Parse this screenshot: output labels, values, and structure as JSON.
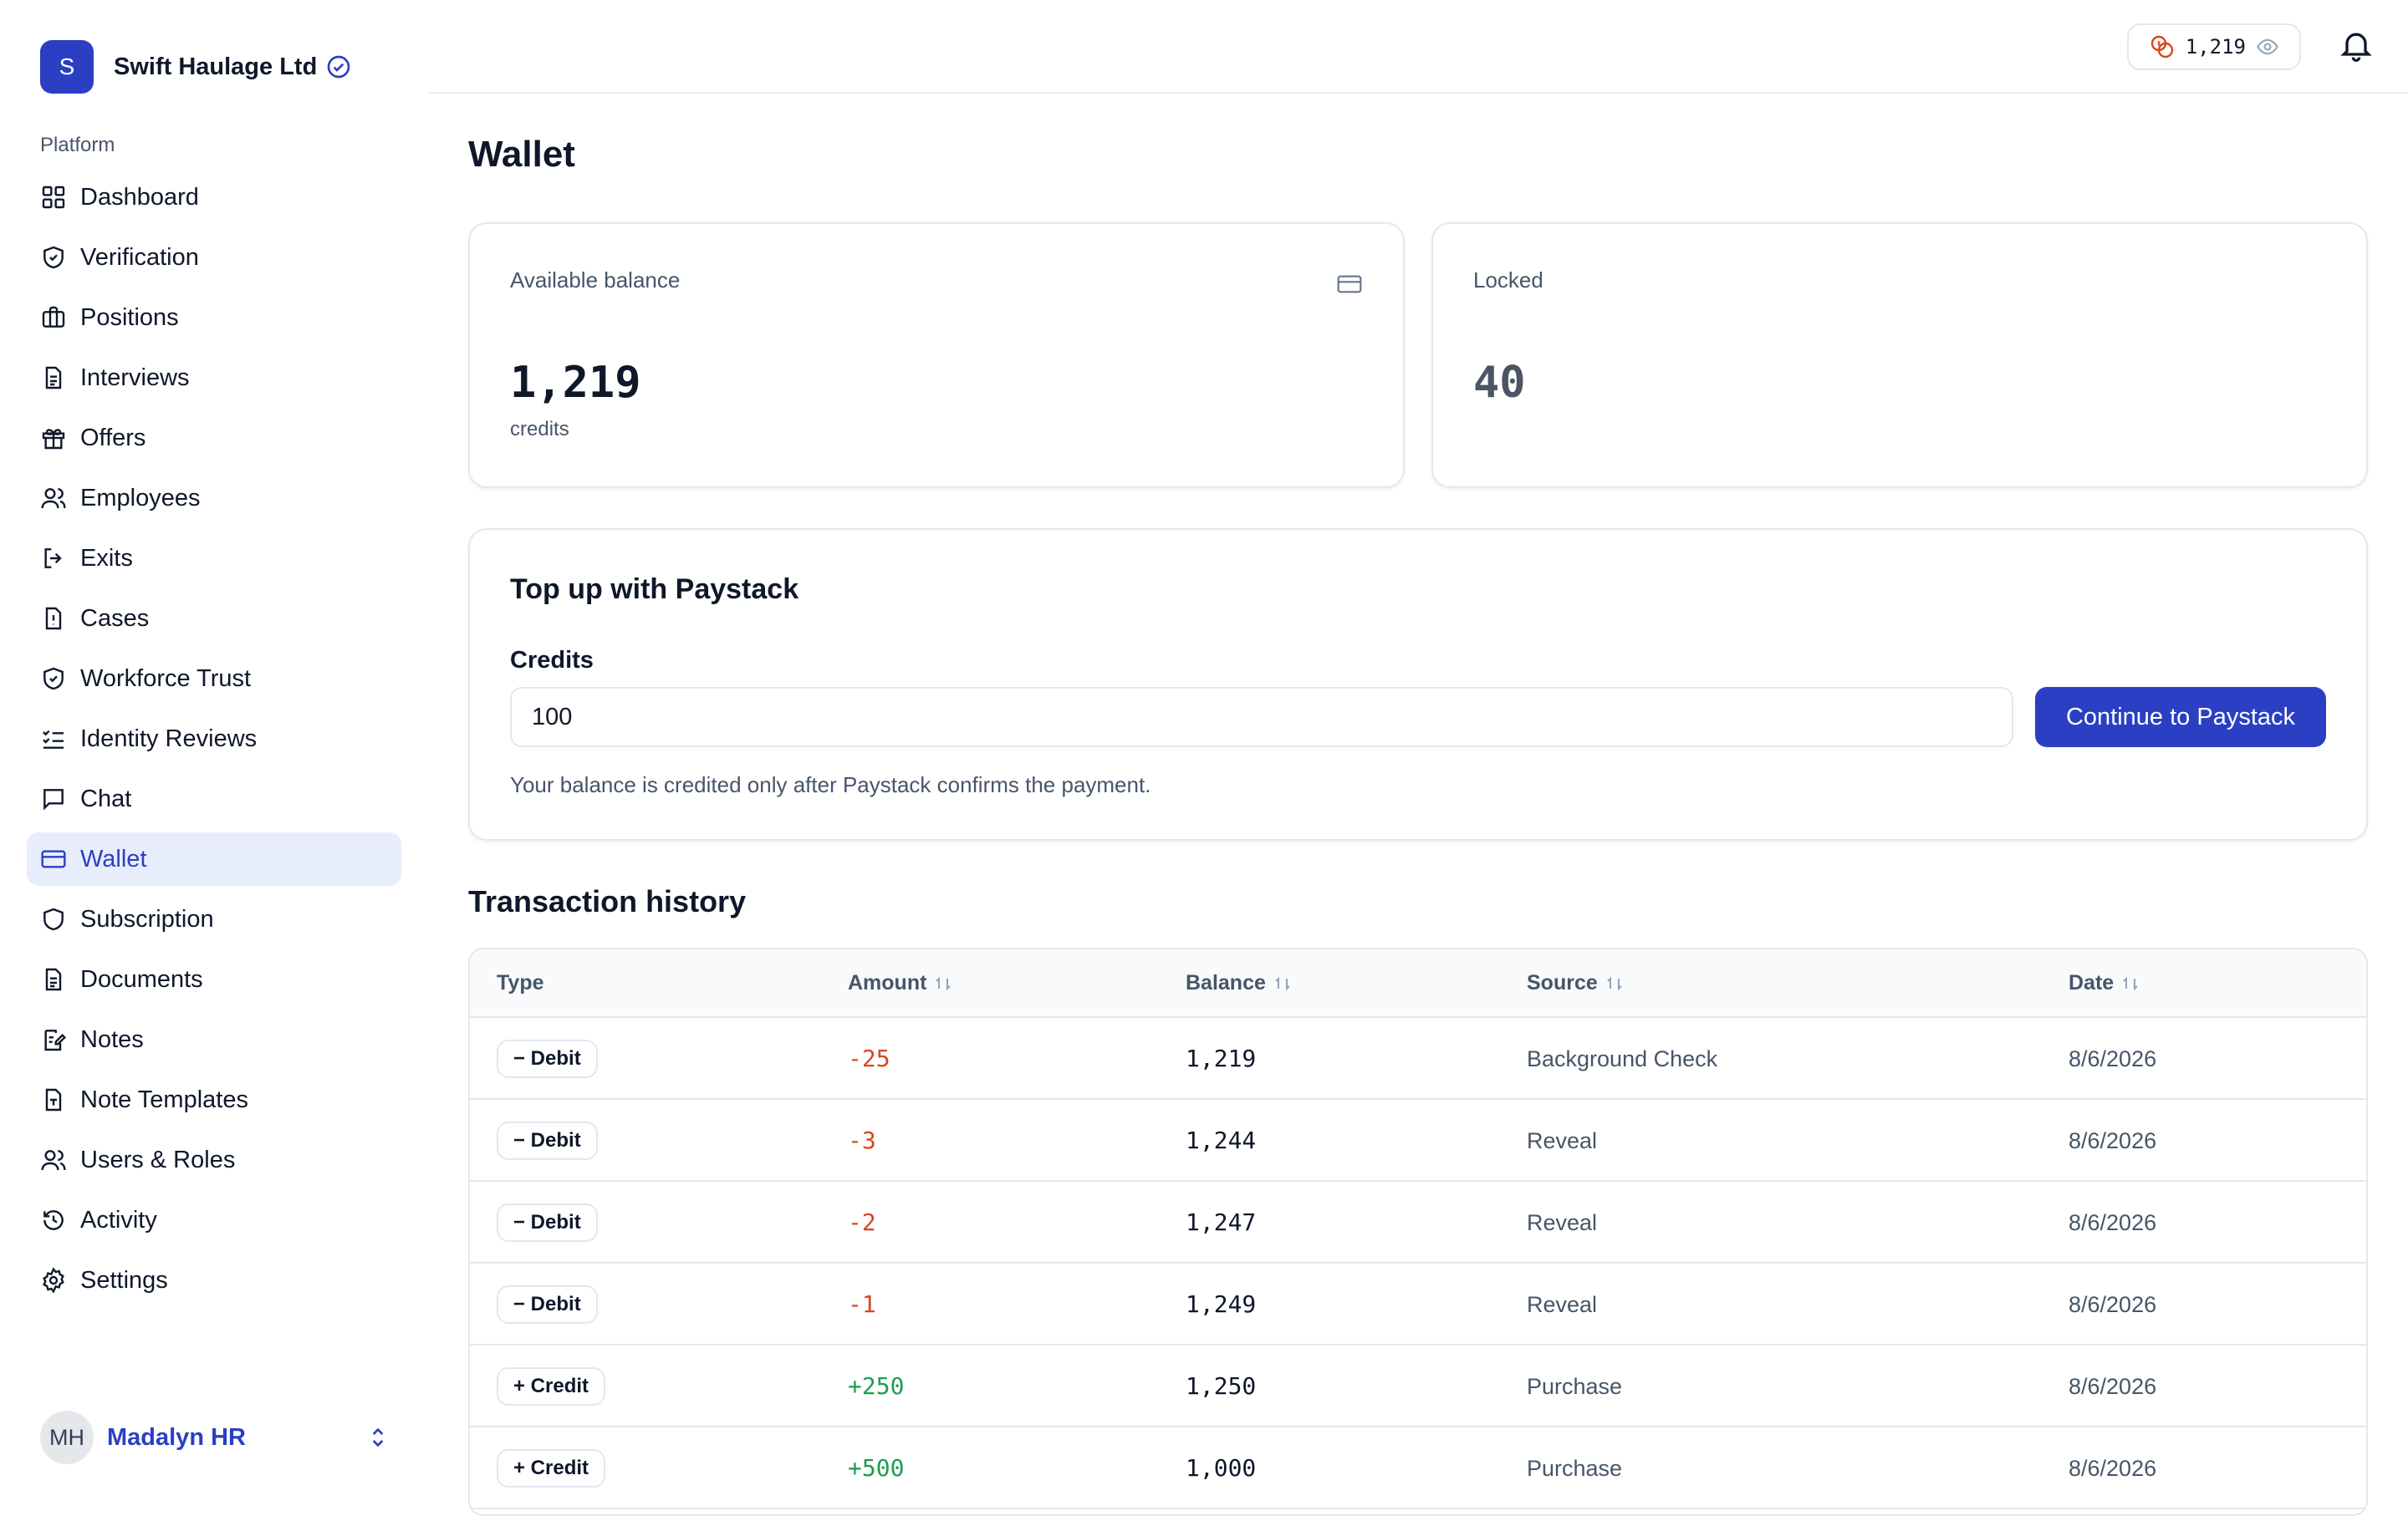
{
  "org": {
    "initial": "S",
    "name": "Swift Haulage Ltd"
  },
  "sidebar": {
    "section_label": "Platform",
    "items": [
      {
        "label": "Dashboard",
        "icon": "grid-icon"
      },
      {
        "label": "Verification",
        "icon": "shield-check-icon"
      },
      {
        "label": "Positions",
        "icon": "briefcase-icon"
      },
      {
        "label": "Interviews",
        "icon": "document-icon"
      },
      {
        "label": "Offers",
        "icon": "gift-icon"
      },
      {
        "label": "Employees",
        "icon": "users-icon"
      },
      {
        "label": "Exits",
        "icon": "logout-icon"
      },
      {
        "label": "Cases",
        "icon": "file-alert-icon"
      },
      {
        "label": "Workforce Trust",
        "icon": "shield-check-icon"
      },
      {
        "label": "Identity Reviews",
        "icon": "checklist-icon"
      },
      {
        "label": "Chat",
        "icon": "chat-icon"
      },
      {
        "label": "Wallet",
        "icon": "credit-card-icon",
        "active": true
      },
      {
        "label": "Subscription",
        "icon": "shield-icon"
      },
      {
        "label": "Documents",
        "icon": "document-icon"
      },
      {
        "label": "Notes",
        "icon": "note-edit-icon"
      },
      {
        "label": "Note Templates",
        "icon": "file-template-icon"
      },
      {
        "label": "Users & Roles",
        "icon": "users-icon"
      },
      {
        "label": "Activity",
        "icon": "history-icon"
      },
      {
        "label": "Settings",
        "icon": "gear-icon"
      }
    ]
  },
  "user": {
    "initials": "MH",
    "name": "Madalyn HR"
  },
  "topbar": {
    "credits": "1,219"
  },
  "page": {
    "title": "Wallet"
  },
  "balance_card": {
    "label": "Available balance",
    "value": "1,219",
    "unit": "credits"
  },
  "locked_card": {
    "label": "Locked",
    "value": "40"
  },
  "topup": {
    "title": "Top up with Paystack",
    "credits_label": "Credits",
    "credits_value": "100",
    "button_label": "Continue to Paystack",
    "help_text": "Your balance is credited only after Paystack confirms the payment."
  },
  "transactions": {
    "title": "Transaction history",
    "columns": {
      "type": "Type",
      "amount": "Amount",
      "balance": "Balance",
      "source": "Source",
      "date": "Date"
    },
    "rows": [
      {
        "type": "− Debit",
        "amount": "-25",
        "balance": "1,219",
        "source": "Background Check",
        "date": "8/6/2026",
        "kind": "debit"
      },
      {
        "type": "− Debit",
        "amount": "-3",
        "balance": "1,244",
        "source": "Reveal",
        "date": "8/6/2026",
        "kind": "debit"
      },
      {
        "type": "− Debit",
        "amount": "-2",
        "balance": "1,247",
        "source": "Reveal",
        "date": "8/6/2026",
        "kind": "debit"
      },
      {
        "type": "− Debit",
        "amount": "-1",
        "balance": "1,249",
        "source": "Reveal",
        "date": "8/6/2026",
        "kind": "debit"
      },
      {
        "type": "+ Credit",
        "amount": "+250",
        "balance": "1,250",
        "source": "Purchase",
        "date": "8/6/2026",
        "kind": "credit"
      },
      {
        "type": "+ Credit",
        "amount": "+500",
        "balance": "1,000",
        "source": "Purchase",
        "date": "8/6/2026",
        "kind": "credit"
      }
    ]
  },
  "colors": {
    "accent": "#2b3fc4",
    "debit": "#d9451f",
    "credit": "#1e9d52"
  }
}
